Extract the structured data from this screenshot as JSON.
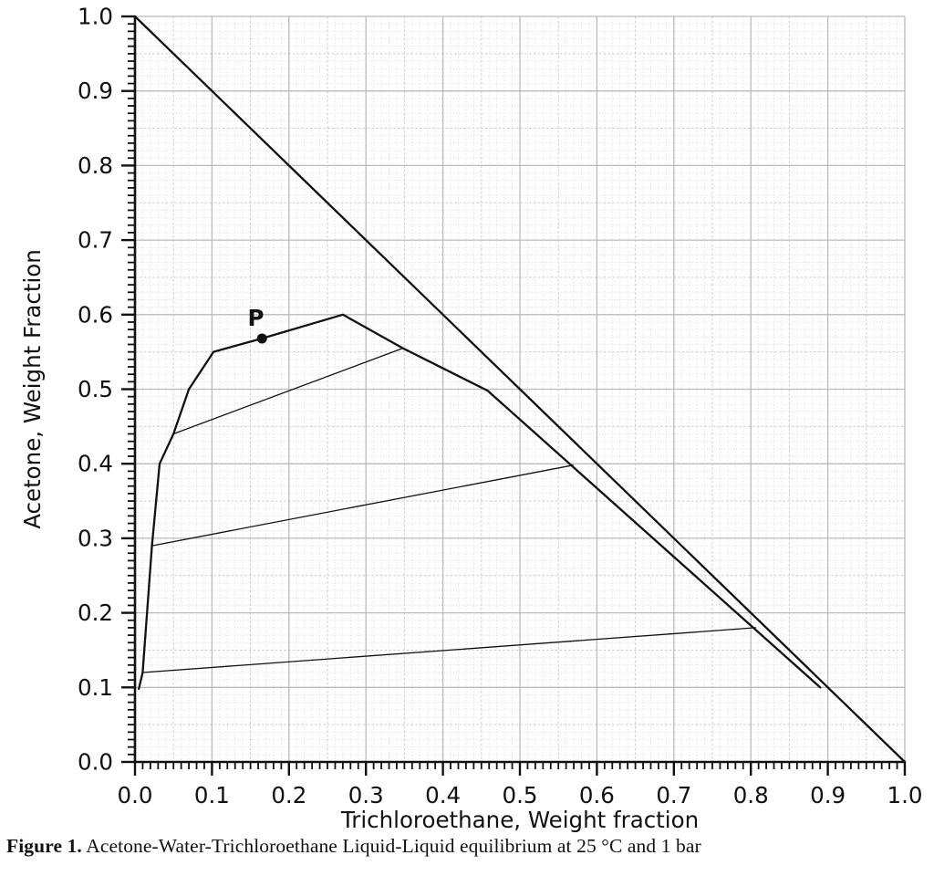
{
  "figure": {
    "caption_prefix": "Figure 1.",
    "caption_text": " Acetone-Water-Trichloroethane Liquid-Liquid equilibrium at 25 °C and 1 bar"
  },
  "chart_data": {
    "type": "line",
    "title": "",
    "xlabel": "Trichloroethane, Weight fraction",
    "ylabel": "Acetone, Weight Fraction",
    "xlim": [
      0.0,
      1.0
    ],
    "ylim": [
      0.0,
      1.0
    ],
    "x_tick_labels": [
      "0.0",
      "0.1",
      "0.2",
      "0.3",
      "0.4",
      "0.5",
      "0.6",
      "0.7",
      "0.8",
      "0.9",
      "1.0"
    ],
    "y_tick_labels": [
      "0.0",
      "0.1",
      "0.2",
      "0.3",
      "0.4",
      "0.5",
      "0.6",
      "0.7",
      "0.8",
      "0.9",
      "1.0"
    ],
    "minor_tick_step": 0.01,
    "major_tick_step": 0.1,
    "grid": {
      "major": true,
      "minor_dotted": true,
      "mid_step": 0.05
    },
    "legend": "none",
    "series": [
      {
        "name": "diagonal-line",
        "points": [
          [
            0.0,
            1.0
          ],
          [
            1.0,
            0.0
          ]
        ],
        "width": 2.3
      },
      {
        "name": "binodal-curve",
        "points": [
          [
            0.005,
            0.098
          ],
          [
            0.01,
            0.12
          ],
          [
            0.022,
            0.29
          ],
          [
            0.032,
            0.4
          ],
          [
            0.05,
            0.44
          ],
          [
            0.07,
            0.5
          ],
          [
            0.102,
            0.55
          ],
          [
            0.165,
            0.568
          ],
          [
            0.27,
            0.6
          ],
          [
            0.348,
            0.555
          ],
          [
            0.458,
            0.498
          ],
          [
            0.89,
            0.1
          ]
        ],
        "width": 2.3
      },
      {
        "name": "tie-line-1",
        "points": [
          [
            0.01,
            0.12
          ],
          [
            0.806,
            0.18
          ]
        ],
        "width": 1.3
      },
      {
        "name": "tie-line-2",
        "points": [
          [
            0.022,
            0.29
          ],
          [
            0.569,
            0.398
          ]
        ],
        "width": 1.3
      },
      {
        "name": "tie-line-3",
        "points": [
          [
            0.05,
            0.44
          ],
          [
            0.348,
            0.555
          ]
        ],
        "width": 1.3
      }
    ],
    "annotations": [
      {
        "label": "P",
        "x": 0.165,
        "y": 0.568,
        "label_x": 0.157,
        "label_y": 0.585,
        "marker_radius": 5.5
      }
    ],
    "colors": {
      "line": "#111111",
      "grid_major": "#bbbbbb",
      "grid_mid": "#cccccc",
      "grid_minor": "#d9d9d9",
      "text": "#111111"
    }
  }
}
